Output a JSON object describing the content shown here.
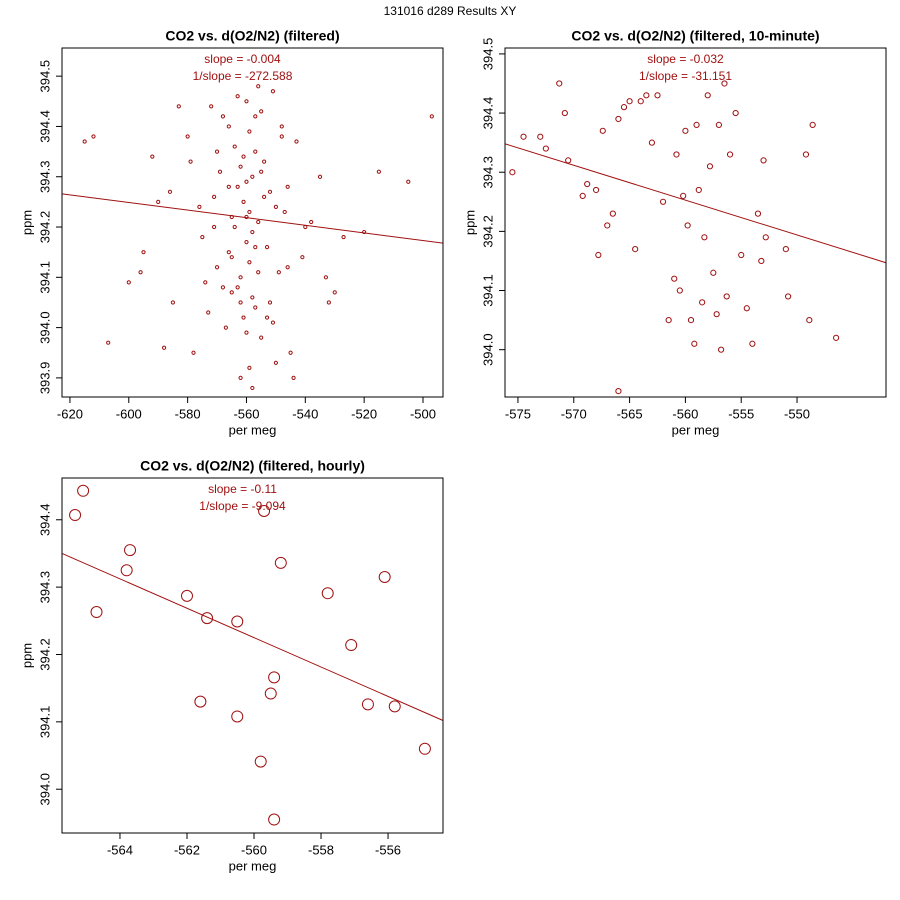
{
  "title": "131016   d289   Results XY",
  "chart_data": [
    {
      "type": "scatter",
      "title": "CO2 vs. d(O2/N2) (filtered)",
      "x_label": "per meg",
      "y_label": "ppm",
      "annotations": [
        "slope = -0.004",
        "1/slope = -272.588"
      ],
      "color": "#a01010",
      "marker_size": 1.6,
      "xlim": [
        -622.7,
        -493.2
      ],
      "ylim": [
        393.862,
        394.556
      ],
      "xticks": [
        -620,
        -600,
        -580,
        -560,
        -540,
        -520,
        -500
      ],
      "yticks": [
        393.9,
        {
          "value": 394,
          "label": "394.0"
        },
        394.1,
        394.2,
        394.3,
        394.4,
        394.5
      ],
      "x": [
        -560,
        -562,
        -558,
        -555,
        -565,
        -570,
        -552,
        -548,
        -575,
        -563,
        -561,
        -557,
        -559,
        -566,
        -554,
        -550,
        -568,
        -572,
        -546,
        -580,
        -590,
        -540,
        -535,
        -585,
        -578,
        -545,
        -556,
        -564,
        -553,
        -567,
        -571,
        -549,
        -543,
        -562,
        -558,
        -560,
        -555,
        -565,
        -561,
        -557,
        -552,
        -569,
        -574,
        -547,
        -559,
        -563,
        -551,
        -556,
        -566,
        -560,
        -615,
        -612,
        -607,
        -600,
        -595,
        -530,
        -520,
        -515,
        -505,
        -497,
        -583,
        -588,
        -592,
        -538,
        -533,
        -576,
        -544,
        -562,
        -558,
        -554,
        -566,
        -570,
        -560,
        -548,
        -556,
        -564,
        -579,
        -541,
        -573,
        -551,
        -559,
        -563,
        -557,
        -561,
        -568,
        -553,
        -586,
        -596,
        -532,
        -527,
        -565,
        -555,
        -559,
        -562,
        -550,
        -571,
        -546,
        -558,
        -560,
        -557
      ],
      "y": [
        394.45,
        394.1,
        394.3,
        393.98,
        394.22,
        394.35,
        394.05,
        394.4,
        394.18,
        394.28,
        394.02,
        394.42,
        393.92,
        394.15,
        394.33,
        394.24,
        394.08,
        394.44,
        394.12,
        394.38,
        394.25,
        394.2,
        394.3,
        394.05,
        393.95,
        393.95,
        394.48,
        394.36,
        394.16,
        394.0,
        394.26,
        394.11,
        394.37,
        393.9,
        394.19,
        394.29,
        394.43,
        394.07,
        394.34,
        394.04,
        394.27,
        394.31,
        394.09,
        394.23,
        394.13,
        394.46,
        394.01,
        394.21,
        394.4,
        394.17,
        394.37,
        394.38,
        393.97,
        394.09,
        394.15,
        394.07,
        394.19,
        394.31,
        394.29,
        394.42,
        394.44,
        393.96,
        394.34,
        394.21,
        394.1,
        394.24,
        393.9,
        394.32,
        394.06,
        394.26,
        394.28,
        394.12,
        393.99,
        394.38,
        394.11,
        394.2,
        394.33,
        394.14,
        394.03,
        394.47,
        394.23,
        394.08,
        394.35,
        394.25,
        394.42,
        394.02,
        394.27,
        394.11,
        394.05,
        394.18,
        394.14,
        394.31,
        394.39,
        394.05,
        393.93,
        394.2,
        394.28,
        393.88,
        394.22,
        394.16
      ],
      "trend": {
        "x": [
          -622.7,
          -493.2
        ],
        "y": [
          394.266,
          394.168
        ]
      }
    },
    {
      "type": "scatter",
      "title": "CO2 vs. d(O2/N2) (filtered, 10-minute)",
      "x_label": "per meg",
      "y_label": "ppm",
      "annotations": [
        "slope = -0.032",
        "1/slope = -31.151"
      ],
      "color": "#a01010",
      "marker_size": 2.6,
      "xlim": [
        -576.16,
        -542.03
      ],
      "ylim": [
        393.92,
        394.51
      ],
      "xticks": [
        -575,
        -570,
        -565,
        -560,
        -555,
        -550
      ],
      "yticks": [
        {
          "value": 394,
          "label": "394.0"
        },
        394.1,
        394.2,
        394.3,
        394.4,
        394.5
      ],
      "x": [
        -575.5,
        -574.5,
        -573,
        -572.5,
        -571.3,
        -570.8,
        -570.5,
        -569.2,
        -568.8,
        -568,
        -567.8,
        -567.4,
        -567,
        -566.5,
        -566,
        -565.5,
        -565,
        -564.5,
        -564,
        -563.5,
        -563,
        -562.5,
        -562,
        -561.5,
        -561,
        -560.8,
        -560.5,
        -560.2,
        -560,
        -559.8,
        -559.5,
        -559.2,
        -559,
        -558.8,
        -558.5,
        -558.3,
        -558,
        -557.8,
        -557.5,
        -557.2,
        -557,
        -556.8,
        -556.5,
        -556.3,
        -556,
        -555.5,
        -555,
        -554.5,
        -554,
        -553.5,
        -553,
        -552.8,
        -553.2,
        -551,
        -550.8,
        -549.2,
        -548.9,
        -548.6,
        -546.5,
        -566
      ],
      "y": [
        394.3,
        394.36,
        394.36,
        394.34,
        394.45,
        394.4,
        394.32,
        394.26,
        394.28,
        394.27,
        394.16,
        394.37,
        394.21,
        394.23,
        394.39,
        394.41,
        394.42,
        394.17,
        394.42,
        394.43,
        394.35,
        394.43,
        394.25,
        394.05,
        394.12,
        394.33,
        394.1,
        394.26,
        394.37,
        394.21,
        394.05,
        394.01,
        394.38,
        394.27,
        394.08,
        394.19,
        394.43,
        394.31,
        394.13,
        394.06,
        394.38,
        394.0,
        394.45,
        394.09,
        394.33,
        394.4,
        394.16,
        394.07,
        394.01,
        394.23,
        394.32,
        394.19,
        394.15,
        394.17,
        394.09,
        394.33,
        394.05,
        394.38,
        394.02,
        393.93
      ],
      "trend": {
        "x": [
          -576.16,
          -542.03
        ],
        "y": [
          394.348,
          394.147
        ]
      }
    },
    {
      "type": "scatter",
      "title": "CO2 vs. d(O2/N2) (filtered, hourly)",
      "x_label": "per meg",
      "y_label": "ppm",
      "annotations": [
        "slope = -0.11",
        "1/slope = -9.094"
      ],
      "color": "#a01010",
      "marker_size": 5.5,
      "xlim": [
        -565.73,
        -554.36
      ],
      "ylim": [
        393.935,
        394.462
      ],
      "xticks": [
        -564,
        -562,
        -560,
        -558,
        -556
      ],
      "yticks": [
        {
          "value": 394,
          "label": "394.0"
        },
        394.1,
        394.2,
        394.3,
        394.4
      ],
      "x": [
        -565.34,
        -565.1,
        -564.7,
        -563.7,
        -563.8,
        -562.0,
        -561.4,
        -561.6,
        -560.5,
        -560.5,
        -559.7,
        -559.8,
        -559.4,
        -559.5,
        -559.2,
        -559.4,
        -557.8,
        -557.1,
        -556.1,
        -556.6,
        -555.8,
        -554.9
      ],
      "y": [
        394.407,
        394.443,
        394.263,
        394.355,
        394.325,
        394.287,
        394.254,
        394.13,
        394.249,
        394.108,
        394.413,
        394.041,
        394.166,
        394.142,
        394.336,
        393.955,
        394.291,
        394.214,
        394.315,
        394.126,
        394.123,
        394.06
      ],
      "trend": {
        "x": [
          -565.73,
          -554.36
        ],
        "y": [
          394.35,
          394.102
        ]
      }
    }
  ]
}
